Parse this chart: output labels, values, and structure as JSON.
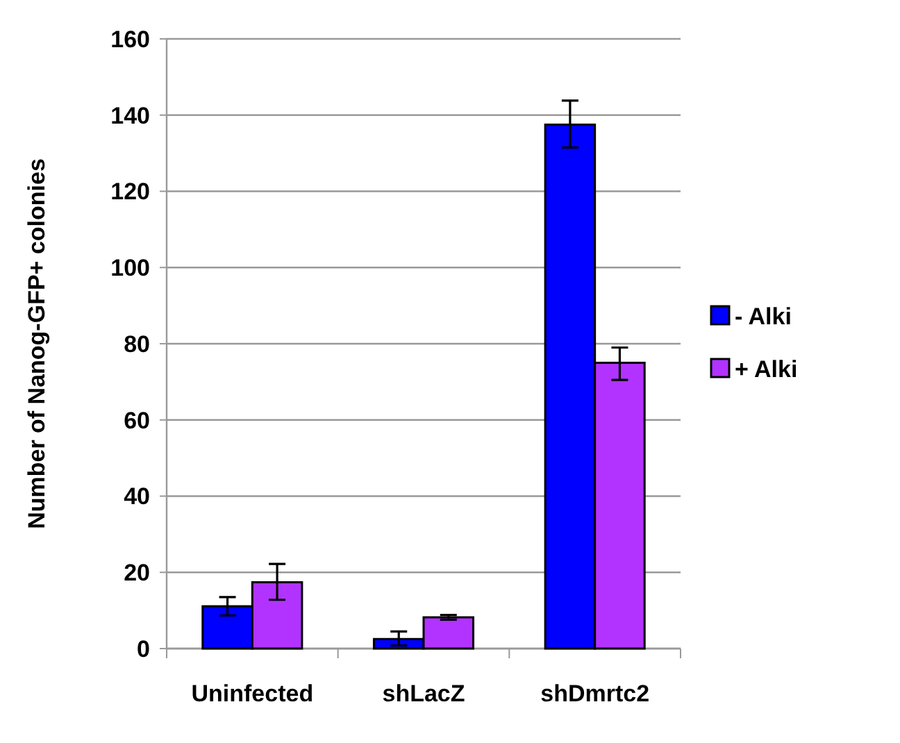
{
  "chart_data": {
    "type": "bar",
    "ylabel": "Number of Nanog-GFP+ colonies",
    "categories": [
      "Uninfected",
      "shLacZ",
      "shDmrtc2"
    ],
    "series": [
      {
        "name": "- Alki",
        "color": "#0000ff",
        "values": [
          11.1,
          2.5,
          137.5
        ],
        "errors": [
          [
            8.7,
            13.5
          ],
          [
            0.8,
            4.5
          ],
          [
            131.5,
            143.8
          ]
        ]
      },
      {
        "name": "+ Alki",
        "color": "#b233ff",
        "values": [
          17.4,
          8.2,
          75
        ],
        "errors": [
          [
            12.8,
            22.2
          ],
          [
            7.6,
            8.8
          ],
          [
            70.5,
            79
          ]
        ]
      }
    ],
    "ylim": [
      0,
      160
    ],
    "yticks": [
      0,
      20,
      40,
      60,
      80,
      100,
      120,
      140,
      160
    ],
    "grid": "y",
    "legend": "right"
  }
}
